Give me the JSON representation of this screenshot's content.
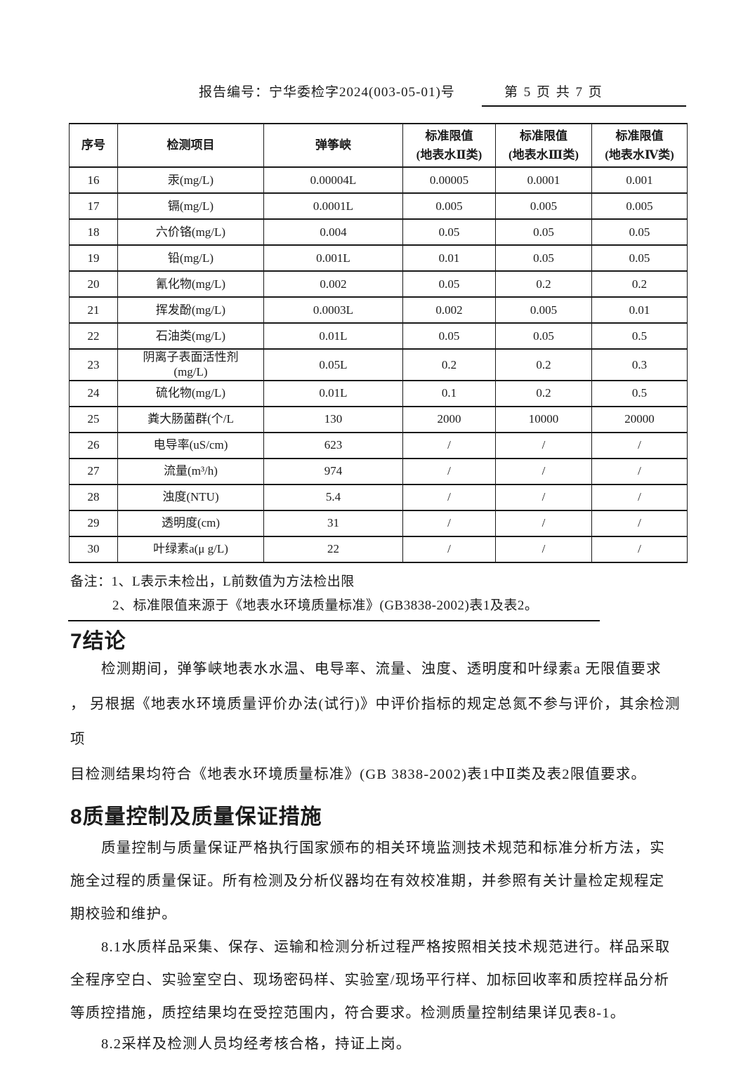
{
  "header": {
    "report_no": "报告编号：宁华委检字2024(003-05-01)号",
    "page_indicator": "第 5 页 共 7 页"
  },
  "table": {
    "headers": [
      "序号",
      "检测项目",
      "弹筝峡",
      "标准限值\n(地表水Ⅱ类)",
      "标准限值\n(地表水Ⅲ类)",
      "标准限值\n(地表水Ⅳ类)"
    ],
    "rows": [
      [
        "16",
        "汞(mg/L)",
        "0.00004L",
        "0.00005",
        "0.0001",
        "0.001"
      ],
      [
        "17",
        "镉(mg/L)",
        "0.0001L",
        "0.005",
        "0.005",
        "0.005"
      ],
      [
        "18",
        "六价铬(mg/L)",
        "0.004",
        "0.05",
        "0.05",
        "0.05"
      ],
      [
        "19",
        "铅(mg/L)",
        "0.001L",
        "0.01",
        "0.05",
        "0.05"
      ],
      [
        "20",
        "氰化物(mg/L)",
        "0.002",
        "0.05",
        "0.2",
        "0.2"
      ],
      [
        "21",
        "挥发酚(mg/L)",
        "0.0003L",
        "0.002",
        "0.005",
        "0.01"
      ],
      [
        "22",
        "石油类(mg/L)",
        "0.01L",
        "0.05",
        "0.05",
        "0.5"
      ],
      [
        "23",
        "阴离子表面活性剂\n(mg/L)",
        "0.05L",
        "0.2",
        "0.2",
        "0.3"
      ],
      [
        "24",
        "硫化物(mg/L)",
        "0.01L",
        "0.1",
        "0.2",
        "0.5"
      ],
      [
        "25",
        "粪大肠菌群(个/L",
        "130",
        "2000",
        "10000",
        "20000"
      ],
      [
        "26",
        "电导率(uS/cm)",
        "623",
        "/",
        "/",
        "/"
      ],
      [
        "27",
        "流量(m³/h)",
        "974",
        "/",
        "/",
        "/"
      ],
      [
        "28",
        "浊度(NTU)",
        "5.4",
        "/",
        "/",
        "/"
      ],
      [
        "29",
        "透明度(cm)",
        "31",
        "/",
        "/",
        "/"
      ],
      [
        "30",
        "叶绿素a(μ g/L)",
        "22",
        "/",
        "/",
        "/"
      ]
    ]
  },
  "notes": {
    "line1": "备注：1、L表示未检出，L前数值为方法检出限",
    "line2": "2、标准限值来源于《地表水环境质量标准》(GB3838-2002)表1及表2。"
  },
  "sections": {
    "conclusion": {
      "title": "7结论",
      "lines": [
        "检测期间，弹筝峡地表水水温、电导率、流量、浊度、透明度和叶绿素a 无限值要求",
        "， 另根据《地表水环境质量评价办法(试行)》中评价指标的规定总氮不参与评价，其余检测",
        "项",
        "目检测结果均符合《地表水环境质量标准》(GB 3838-2002)表1中Ⅱ类及表2限值要求。"
      ]
    },
    "quality": {
      "title": "8质量控制及质量保证措施",
      "para_lines": [
        "质量控制与质量保证严格执行国家颁布的相关环境监测技术规范和标准分析方法，实",
        "施全过程的质量保证。所有检测及分析仪器均在有效校准期，并参照有关计量检定规程定",
        "期校验和维护。"
      ],
      "s81_lines": [
        "8.1水质样品采集、保存、运输和检测分析过程严格按照相关技术规范进行。样品采取",
        "全程序空白、实验室空白、现场密码样、实验室/现场平行样、加标回收率和质控样品分析",
        "等质控措施，质控结果均在受控范围内，符合要求。检测质量控制结果详见表8-1。"
      ],
      "s82_line": "8.2采样及检测人员均经考核合格，持证上岗。"
    }
  },
  "colors": {
    "background": "#ffffff",
    "text": "#1b1b1b",
    "border": "#1a1a1a"
  }
}
